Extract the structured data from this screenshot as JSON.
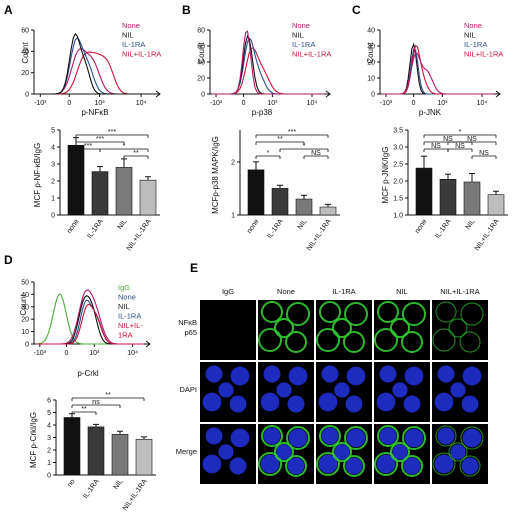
{
  "colors": {
    "none": "#b0186a",
    "nil": "#111111",
    "il1ra": "#2c4f8c",
    "combo": "#c8143c",
    "igg": "#4cad3c",
    "dapi": "#2233e0",
    "fitc": "#33cc33",
    "bar_none": "#111111",
    "bar_il1ra": "#3a3a3a",
    "bar_nil": "#7a7a7a",
    "bar_combo": "#bdbdbd"
  },
  "panels": {
    "A": {
      "label": "A",
      "legend": [
        "None",
        "NIL",
        "IL-1RA",
        "NIL+IL-1RA"
      ],
      "hist_xlabel": "p-NFκB",
      "hist_ylabel": "Count",
      "hist_xticks": [
        "-10³",
        "0",
        "10³",
        "10⁴"
      ],
      "hist_yticks": [
        "60",
        "40",
        "20",
        "0"
      ],
      "bar_ylabel": "MCF p-NF-κB/IgG"
    },
    "B": {
      "label": "B",
      "legend": [
        "None",
        "NIL",
        "IL-1RA",
        "NIL+IL-1RA"
      ],
      "hist_xlabel": "p-p38",
      "hist_ylabel": "Count",
      "hist_xticks": [
        "-10³",
        "0",
        "10³",
        "10⁴"
      ],
      "hist_yticks": [
        "80",
        "60",
        "40",
        "20",
        "0"
      ],
      "bar_ylabel": "MCFp-p38 MAPK/IgG"
    },
    "C": {
      "label": "C",
      "legend": [
        "None",
        "NIL",
        "IL-1RA",
        "NIL+IL-1RA"
      ],
      "hist_xlabel": "p-JNK",
      "hist_ylabel": "Count",
      "hist_xticks": [
        "-10³",
        "0",
        "10³",
        "10⁴"
      ],
      "hist_yticks": [
        "40",
        "30",
        "20",
        "10",
        "0"
      ],
      "bar_ylabel": "MCF p-JNK/IgG"
    },
    "D": {
      "label": "D",
      "legend": [
        "IgG",
        "None",
        "NIL",
        "IL-1RA",
        "NIL+IL-",
        "1RA"
      ],
      "hist_xlabel": "p-Crkl",
      "hist_ylabel": "Count",
      "hist_xticks": [
        "-10³",
        "0",
        "10³",
        "10⁴"
      ],
      "hist_yticks": [
        "50",
        "40",
        "30",
        "20",
        "10",
        "0"
      ],
      "bar_ylabel": "MCF p-Crkl/IgG"
    },
    "E": {
      "label": "E",
      "columns": [
        "IgG",
        "None",
        "IL-1RA",
        "NIL",
        "NIL+IL-1RA"
      ],
      "rows": [
        "NFκB\np65",
        "DAPI",
        "Merge"
      ]
    }
  },
  "chart_data": [
    {
      "type": "bar",
      "panel": "A",
      "categories": [
        "none",
        "IL-1RA",
        "NIL",
        "NIL+IL-1RA"
      ],
      "values": [
        4.1,
        2.55,
        2.8,
        2.05
      ],
      "errors": [
        0.45,
        0.3,
        0.5,
        0.2
      ],
      "ylim": [
        0,
        5
      ],
      "yticks": [
        "0",
        "1",
        "2",
        "3",
        "4",
        "5"
      ],
      "significance": [
        "***",
        "***",
        "***",
        "*",
        "**"
      ]
    },
    {
      "type": "bar",
      "panel": "B",
      "categories": [
        "none",
        "IL-1RA",
        "NIL",
        "NIL+IL-1RA"
      ],
      "values": [
        1.85,
        1.5,
        1.3,
        1.15
      ],
      "errors": [
        0.15,
        0.06,
        0.07,
        0.05
      ],
      "ylim": [
        1,
        2.6
      ],
      "yticks": [
        "1",
        "2"
      ],
      "significance": [
        "***",
        "**",
        "*",
        "*",
        "NS"
      ]
    },
    {
      "type": "bar",
      "panel": "C",
      "categories": [
        "none",
        "IL-1RA",
        "NIL",
        "NIL+IL-1RA"
      ],
      "values": [
        2.38,
        2.05,
        1.97,
        1.6
      ],
      "errors": [
        0.35,
        0.15,
        0.25,
        0.1
      ],
      "ylim": [
        1,
        3.5
      ],
      "yticks": [
        "1.0",
        "1.5",
        "2.0",
        "2.5",
        "3.0",
        "3.5"
      ],
      "significance": [
        "*",
        "NS",
        "NS",
        "NS",
        "NS",
        "NS"
      ]
    },
    {
      "type": "bar",
      "panel": "D",
      "categories": [
        "no",
        "IL-1RA",
        "NIL",
        "NIL+IL-1RA"
      ],
      "values": [
        4.6,
        3.85,
        3.25,
        2.85
      ],
      "errors": [
        0.3,
        0.2,
        0.25,
        0.2
      ],
      "ylim": [
        0,
        6
      ],
      "yticks": [
        "0",
        "1",
        "2",
        "3",
        "4",
        "5",
        "6"
      ],
      "significance": [
        "ns",
        "**",
        "**"
      ]
    }
  ]
}
